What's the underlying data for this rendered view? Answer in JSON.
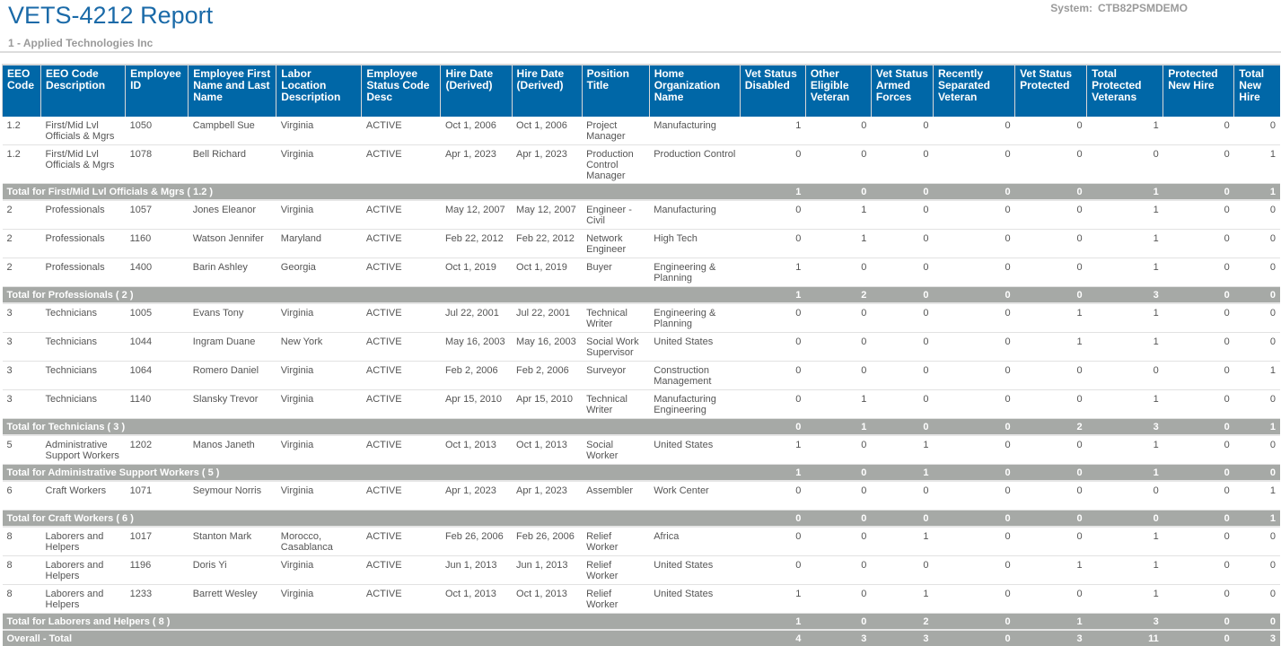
{
  "header": {
    "title": "VETS-4212 Report",
    "subtitle": "1 - Applied Technologies Inc",
    "system_label": "System:",
    "system_value": "CTB82PSMDEMO"
  },
  "colors": {
    "header_bg": "#0067a7",
    "total_bg": "#a6a9a6",
    "title": "#1a6aa8"
  },
  "table": {
    "columns": [
      "EEO Code",
      "EEO Code Description",
      "Employee ID",
      "Employee First Name and Last Name",
      "Labor Location Description",
      "Employee Status Code Desc",
      "Hire Date (Derived)",
      "Hire Date (Derived)",
      "Position Title",
      "Home Organization Name",
      "Vet Status Disabled",
      "Other Eligible Veteran",
      "Vet Status Armed Forces",
      "Recently Separated Veteran",
      "Vet Status Protected",
      "Total Protected Veterans",
      "Protected New Hire",
      "Total New Hire"
    ],
    "rows": [
      {
        "type": "data",
        "cells": [
          "1.2",
          "First/Mid Lvl Officials & Mgrs",
          "1050",
          "Campbell Sue",
          "Virginia",
          "ACTIVE",
          "Oct 1, 2006",
          "Oct 1, 2006",
          "Project Manager",
          "Manufacturing",
          "1",
          "0",
          "0",
          "0",
          "0",
          "1",
          "0",
          "0"
        ]
      },
      {
        "type": "data",
        "cells": [
          "1.2",
          "First/Mid Lvl Officials & Mgrs",
          "1078",
          "Bell Richard",
          "Virginia",
          "ACTIVE",
          "Apr 1, 2023",
          "Apr 1, 2023",
          "Production Control Manager",
          "Production Control",
          "0",
          "0",
          "0",
          "0",
          "0",
          "0",
          "0",
          "1"
        ]
      },
      {
        "type": "total",
        "label": "Total for First/Mid Lvl Officials & Mgrs ( 1.2 )",
        "values": [
          "1",
          "0",
          "0",
          "0",
          "0",
          "1",
          "0",
          "1"
        ]
      },
      {
        "type": "data",
        "cells": [
          "2",
          "Professionals",
          "1057",
          "Jones Eleanor",
          "Virginia",
          "ACTIVE",
          "May 12, 2007",
          "May 12, 2007",
          "Engineer - Civil",
          "Manufacturing",
          "0",
          "1",
          "0",
          "0",
          "0",
          "1",
          "0",
          "0"
        ]
      },
      {
        "type": "data",
        "cells": [
          "2",
          "Professionals",
          "1160",
          "Watson Jennifer",
          "Maryland",
          "ACTIVE",
          "Feb 22, 2012",
          "Feb 22, 2012",
          "Network Engineer",
          "High Tech",
          "0",
          "1",
          "0",
          "0",
          "0",
          "1",
          "0",
          "0"
        ]
      },
      {
        "type": "data",
        "cells": [
          "2",
          "Professionals",
          "1400",
          "Barin Ashley",
          "Georgia",
          "ACTIVE",
          "Oct 1, 2019",
          "Oct 1, 2019",
          "Buyer",
          "Engineering & Planning",
          "1",
          "0",
          "0",
          "0",
          "0",
          "1",
          "0",
          "0"
        ]
      },
      {
        "type": "total",
        "label": "Total for Professionals ( 2 )",
        "values": [
          "1",
          "2",
          "0",
          "0",
          "0",
          "3",
          "0",
          "0"
        ]
      },
      {
        "type": "data",
        "cells": [
          "3",
          "Technicians",
          "1005",
          "Evans Tony",
          "Virginia",
          "ACTIVE",
          "Jul 22, 2001",
          "Jul 22, 2001",
          "Technical Writer",
          "Engineering & Planning",
          "0",
          "0",
          "0",
          "0",
          "1",
          "1",
          "0",
          "0"
        ]
      },
      {
        "type": "data",
        "cells": [
          "3",
          "Technicians",
          "1044",
          "Ingram Duane",
          "New York",
          "ACTIVE",
          "May 16, 2003",
          "May 16, 2003",
          "Social Work Supervisor",
          "United States",
          "0",
          "0",
          "0",
          "0",
          "1",
          "1",
          "0",
          "0"
        ]
      },
      {
        "type": "data",
        "cells": [
          "3",
          "Technicians",
          "1064",
          "Romero Daniel",
          "Virginia",
          "ACTIVE",
          "Feb 2, 2006",
          "Feb 2, 2006",
          "Surveyor",
          "Construction Management",
          "0",
          "0",
          "0",
          "0",
          "0",
          "0",
          "0",
          "1"
        ]
      },
      {
        "type": "data",
        "cells": [
          "3",
          "Technicians",
          "1140",
          "Slansky Trevor",
          "Virginia",
          "ACTIVE",
          "Apr 15, 2010",
          "Apr 15, 2010",
          "Technical Writer",
          "Manufacturing Engineering",
          "0",
          "1",
          "0",
          "0",
          "0",
          "1",
          "0",
          "0"
        ]
      },
      {
        "type": "total",
        "label": "Total for Technicians ( 3 )",
        "values": [
          "0",
          "1",
          "0",
          "0",
          "2",
          "3",
          "0",
          "1"
        ]
      },
      {
        "type": "data",
        "cells": [
          "5",
          "Administrative Support Workers",
          "1202",
          "Manos Janeth",
          "Virginia",
          "ACTIVE",
          "Oct 1, 2013",
          "Oct 1, 2013",
          "Social Worker",
          "United States",
          "1",
          "0",
          "1",
          "0",
          "0",
          "1",
          "0",
          "0"
        ]
      },
      {
        "type": "total",
        "label": "Total for Administrative Support Workers ( 5 )",
        "values": [
          "1",
          "0",
          "1",
          "0",
          "0",
          "1",
          "0",
          "0"
        ]
      },
      {
        "type": "data",
        "cells": [
          "6",
          "Craft Workers",
          "1071",
          "Seymour Norris",
          "Virginia",
          "ACTIVE",
          "Apr 1, 2023",
          "Apr 1, 2023",
          "Assembler",
          "Work Center",
          "0",
          "0",
          "0",
          "0",
          "0",
          "0",
          "0",
          "1"
        ]
      },
      {
        "type": "total",
        "label": "Total for Craft Workers ( 6 )",
        "values": [
          "0",
          "0",
          "0",
          "0",
          "0",
          "0",
          "0",
          "1"
        ]
      },
      {
        "type": "data",
        "cells": [
          "8",
          "Laborers and Helpers",
          "1017",
          "Stanton Mark",
          "Morocco, Casablanca",
          "ACTIVE",
          "Feb 26, 2006",
          "Feb 26, 2006",
          "Relief Worker",
          "Africa",
          "0",
          "0",
          "1",
          "0",
          "0",
          "1",
          "0",
          "0"
        ]
      },
      {
        "type": "data",
        "cells": [
          "8",
          "Laborers and Helpers",
          "1196",
          "Doris Yi",
          "Virginia",
          "ACTIVE",
          "Jun 1, 2013",
          "Jun 1, 2013",
          "Relief Worker",
          "United States",
          "0",
          "0",
          "0",
          "0",
          "1",
          "1",
          "0",
          "0"
        ]
      },
      {
        "type": "data",
        "cells": [
          "8",
          "Laborers and Helpers",
          "1233",
          "Barrett Wesley",
          "Virginia",
          "ACTIVE",
          "Oct 1, 2013",
          "Oct 1, 2013",
          "Relief Worker",
          "United States",
          "1",
          "0",
          "1",
          "0",
          "0",
          "1",
          "0",
          "0"
        ]
      },
      {
        "type": "total",
        "label": "Total for Laborers and Helpers ( 8 )",
        "values": [
          "1",
          "0",
          "2",
          "0",
          "1",
          "3",
          "0",
          "0"
        ]
      },
      {
        "type": "overall",
        "label": "Overall - Total",
        "values": [
          "4",
          "3",
          "3",
          "0",
          "3",
          "11",
          "0",
          "3"
        ]
      }
    ]
  }
}
